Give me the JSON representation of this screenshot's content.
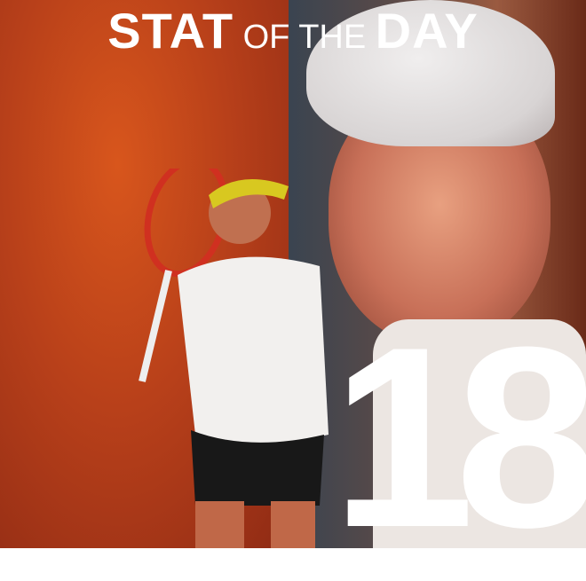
{
  "title": {
    "part1": "STAT",
    "part2": "OF THE",
    "part3": "DAY"
  },
  "stat_value": "18",
  "colors": {
    "left_bg": "#b8401a",
    "right_bg": "#3a4450",
    "text": "#ffffff"
  }
}
